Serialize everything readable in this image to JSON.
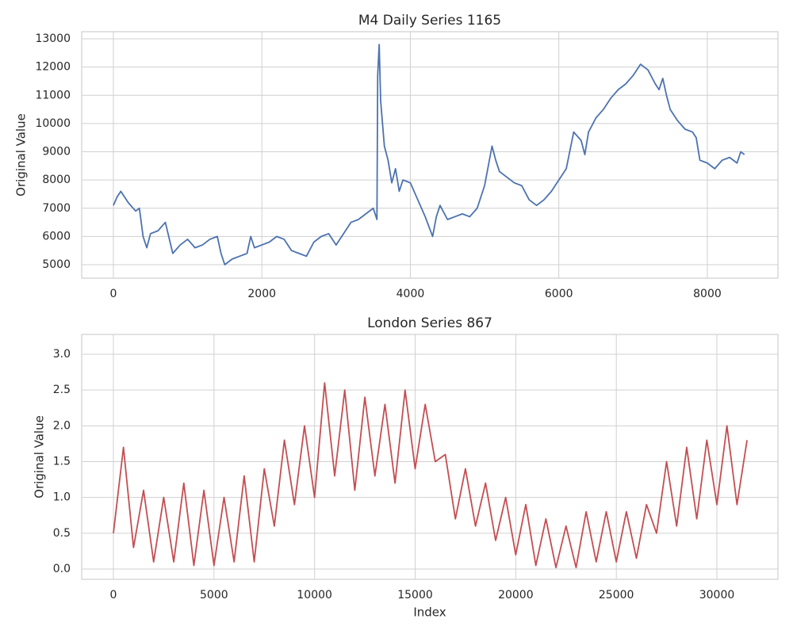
{
  "chart_data": [
    {
      "type": "line",
      "title": "M4 Daily Series 1165",
      "ylabel": "Original Value",
      "color": "#4c72b0",
      "x": [
        0,
        50,
        100,
        200,
        300,
        350,
        400,
        450,
        500,
        600,
        700,
        800,
        900,
        1000,
        1100,
        1200,
        1300,
        1400,
        1450,
        1500,
        1600,
        1700,
        1800,
        1850,
        1900,
        2000,
        2100,
        2200,
        2300,
        2400,
        2500,
        2600,
        2700,
        2800,
        2900,
        3000,
        3100,
        3200,
        3300,
        3400,
        3500,
        3550,
        3560,
        3580,
        3600,
        3650,
        3700,
        3750,
        3800,
        3850,
        3900,
        4000,
        4100,
        4200,
        4300,
        4350,
        4400,
        4500,
        4600,
        4700,
        4800,
        4900,
        5000,
        5100,
        5150,
        5200,
        5300,
        5400,
        5500,
        5600,
        5700,
        5800,
        5900,
        6000,
        6100,
        6200,
        6300,
        6350,
        6400,
        6500,
        6600,
        6700,
        6800,
        6900,
        7000,
        7100,
        7200,
        7300,
        7350,
        7400,
        7450,
        7500,
        7600,
        7700,
        7800,
        7850,
        7900,
        8000,
        8100,
        8200,
        8300,
        8400,
        8450,
        8500
      ],
      "values": [
        7100,
        7400,
        7600,
        7200,
        6900,
        7000,
        6000,
        5600,
        6100,
        6200,
        6500,
        5400,
        5700,
        5900,
        5600,
        5700,
        5900,
        6000,
        5400,
        5000,
        5200,
        5300,
        5400,
        6000,
        5600,
        5700,
        5800,
        6000,
        5900,
        5500,
        5400,
        5300,
        5800,
        6000,
        6100,
        5700,
        6100,
        6500,
        6600,
        6800,
        7000,
        6600,
        11700,
        12800,
        10800,
        9200,
        8700,
        7900,
        8400,
        7600,
        8000,
        7900,
        7300,
        6700,
        6000,
        6700,
        7100,
        6600,
        6700,
        6800,
        6700,
        7000,
        7800,
        9200,
        8700,
        8300,
        8100,
        7900,
        7800,
        7300,
        7100,
        7300,
        7600,
        8000,
        8400,
        9700,
        9400,
        8900,
        9700,
        10200,
        10500,
        10900,
        11200,
        11400,
        11700,
        12100,
        11900,
        11400,
        11200,
        11600,
        11000,
        10500,
        10100,
        9800,
        9700,
        9500,
        8700,
        8600,
        8400,
        8700,
        8800,
        8600,
        9000,
        8900
      ],
      "xlim": [
        -427,
        8951
      ],
      "xticks": [
        0,
        2000,
        4000,
        6000,
        8000
      ],
      "ylim": [
        4523,
        13253
      ],
      "yticks": [
        5000,
        6000,
        7000,
        8000,
        9000,
        10000,
        11000,
        12000,
        13000
      ],
      "grid": true
    },
    {
      "type": "line",
      "title": "London Series 867",
      "xlabel": "Index",
      "ylabel": "Original Value",
      "color": "#c44e52",
      "x": [
        0,
        500,
        1000,
        1500,
        2000,
        2500,
        3000,
        3500,
        4000,
        4500,
        5000,
        5500,
        6000,
        6500,
        7000,
        7500,
        8000,
        8500,
        9000,
        9500,
        10000,
        10500,
        11000,
        11500,
        12000,
        12500,
        13000,
        13500,
        14000,
        14500,
        15000,
        15500,
        16000,
        16500,
        17000,
        17500,
        18000,
        18500,
        19000,
        19500,
        20000,
        20500,
        21000,
        21500,
        22000,
        22500,
        23000,
        23500,
        24000,
        24500,
        25000,
        25500,
        26000,
        26500,
        27000,
        27500,
        28000,
        28500,
        29000,
        29500,
        30000,
        30500,
        31000,
        31500
      ],
      "values": [
        0.5,
        1.7,
        0.3,
        1.1,
        0.1,
        1.0,
        0.1,
        1.2,
        0.05,
        1.1,
        0.05,
        1.0,
        0.1,
        1.3,
        0.1,
        1.4,
        0.6,
        1.8,
        0.9,
        2.0,
        1.0,
        2.6,
        1.3,
        2.5,
        1.1,
        2.4,
        1.3,
        2.3,
        1.2,
        2.5,
        1.4,
        2.3,
        1.5,
        1.6,
        0.7,
        1.4,
        0.6,
        1.2,
        0.4,
        1.0,
        0.2,
        0.9,
        0.05,
        0.7,
        0.02,
        0.6,
        0.02,
        0.8,
        0.1,
        0.8,
        0.1,
        0.8,
        0.15,
        0.9,
        0.5,
        1.5,
        0.6,
        1.7,
        0.7,
        1.8,
        0.9,
        2.0,
        0.9,
        1.8
      ],
      "xlim": [
        -1577,
        33035
      ],
      "xticks": [
        0,
        5000,
        10000,
        15000,
        20000,
        25000,
        30000
      ],
      "ylim": [
        -0.144,
        3.277
      ],
      "yticks": [
        {
          "value": 0,
          "label": "0.0"
        },
        0.5,
        {
          "value": 1,
          "label": "1.0"
        },
        1.5,
        {
          "value": 2,
          "label": "2.0"
        },
        2.5,
        {
          "value": 3,
          "label": "3.0"
        }
      ],
      "grid": true
    }
  ]
}
